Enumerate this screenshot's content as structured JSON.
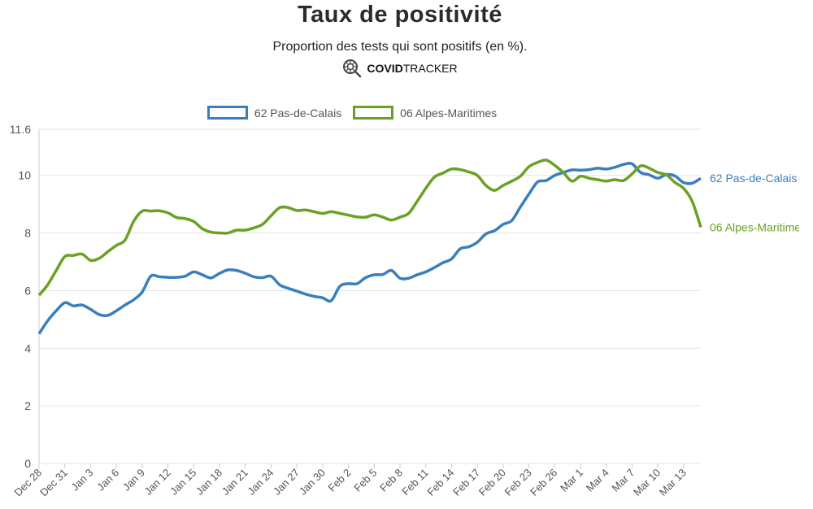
{
  "header": {
    "title": "Taux de positivité",
    "subtitle": "Proportion des tests qui sont positifs (en %).",
    "brand_bold": "COVID",
    "brand_rest": "TRACKER",
    "brand_icon": "virus-magnifier-icon"
  },
  "chart_data": {
    "type": "line",
    "title": "Taux de positivité",
    "subtitle": "Proportion des tests qui sont positifs (en %).",
    "xlabel": "",
    "ylabel": "",
    "ylim": [
      0,
      11.6
    ],
    "yticks": [
      "0",
      "2",
      "4",
      "6",
      "8",
      "10",
      "11.6"
    ],
    "xticks": [
      "Dec 28",
      "Dec 31",
      "Jan 3",
      "Jan 6",
      "Jan 9",
      "Jan 12",
      "Jan 15",
      "Jan 18",
      "Jan 21",
      "Jan 24",
      "Jan 27",
      "Jan 30",
      "Feb 2",
      "Feb 5",
      "Feb 8",
      "Feb 11",
      "Feb 14",
      "Feb 17",
      "Feb 20",
      "Feb 23",
      "Feb 26",
      "Mar 1",
      "Mar 4",
      "Mar 7",
      "Mar 10",
      "Mar 13"
    ],
    "grid": true,
    "legend_position": "top",
    "x": [
      "Dec 28",
      "Dec 29",
      "Dec 30",
      "Dec 31",
      "Jan 1",
      "Jan 2",
      "Jan 3",
      "Jan 4",
      "Jan 5",
      "Jan 6",
      "Jan 7",
      "Jan 8",
      "Jan 9",
      "Jan 10",
      "Jan 11",
      "Jan 12",
      "Jan 13",
      "Jan 14",
      "Jan 15",
      "Jan 16",
      "Jan 17",
      "Jan 18",
      "Jan 19",
      "Jan 20",
      "Jan 21",
      "Jan 22",
      "Jan 23",
      "Jan 24",
      "Jan 25",
      "Jan 26",
      "Jan 27",
      "Jan 28",
      "Jan 29",
      "Jan 30",
      "Jan 31",
      "Feb 1",
      "Feb 2",
      "Feb 3",
      "Feb 4",
      "Feb 5",
      "Feb 6",
      "Feb 7",
      "Feb 8",
      "Feb 9",
      "Feb 10",
      "Feb 11",
      "Feb 12",
      "Feb 13",
      "Feb 14",
      "Feb 15",
      "Feb 16",
      "Feb 17",
      "Feb 18",
      "Feb 19",
      "Feb 20",
      "Feb 21",
      "Feb 22",
      "Feb 23",
      "Feb 24",
      "Feb 25",
      "Feb 26",
      "Feb 27",
      "Feb 28",
      "Mar 1",
      "Mar 2",
      "Mar 3",
      "Mar 4",
      "Mar 5",
      "Mar 6",
      "Mar 7",
      "Mar 8",
      "Mar 9",
      "Mar 10",
      "Mar 11",
      "Mar 12",
      "Mar 13",
      "Mar 14",
      "Mar 15"
    ],
    "series": [
      {
        "name": "62 Pas-de-Calais",
        "color": "#3a7fbd",
        "values": [
          4.5,
          4.95,
          5.3,
          5.58,
          5.47,
          5.5,
          5.35,
          5.17,
          5.14,
          5.3,
          5.5,
          5.68,
          5.95,
          6.5,
          6.48,
          6.46,
          6.46,
          6.5,
          6.65,
          6.55,
          6.44,
          6.6,
          6.72,
          6.7,
          6.6,
          6.48,
          6.45,
          6.5,
          6.2,
          6.08,
          5.98,
          5.88,
          5.8,
          5.75,
          5.65,
          6.15,
          6.24,
          6.24,
          6.45,
          6.55,
          6.56,
          6.7,
          6.43,
          6.43,
          6.55,
          6.65,
          6.8,
          6.97,
          7.1,
          7.45,
          7.52,
          7.68,
          7.97,
          8.08,
          8.3,
          8.43,
          8.9,
          9.35,
          9.77,
          9.82,
          10.0,
          10.1,
          10.19,
          10.18,
          10.2,
          10.25,
          10.22,
          10.28,
          10.38,
          10.4,
          10.1,
          10.02,
          9.9,
          10.03,
          9.98,
          9.75,
          9.73,
          9.9
        ]
      },
      {
        "name": "06 Alpes-Maritimes",
        "color": "#6aa125",
        "values": [
          5.84,
          6.2,
          6.7,
          7.18,
          7.22,
          7.27,
          7.05,
          7.12,
          7.35,
          7.57,
          7.75,
          8.4,
          8.76,
          8.76,
          8.77,
          8.7,
          8.54,
          8.5,
          8.4,
          8.15,
          8.03,
          8.0,
          8.0,
          8.1,
          8.1,
          8.18,
          8.3,
          8.6,
          8.88,
          8.88,
          8.78,
          8.8,
          8.74,
          8.68,
          8.74,
          8.68,
          8.62,
          8.56,
          8.55,
          8.63,
          8.55,
          8.45,
          8.55,
          8.68,
          9.1,
          9.55,
          9.94,
          10.08,
          10.22,
          10.2,
          10.12,
          10.0,
          9.65,
          9.48,
          9.65,
          9.8,
          9.97,
          10.3,
          10.45,
          10.53,
          10.35,
          10.1,
          9.8,
          9.97,
          9.9,
          9.85,
          9.8,
          9.85,
          9.82,
          10.05,
          10.33,
          10.25,
          10.1,
          10.02,
          9.75,
          9.55,
          9.1,
          8.2
        ]
      }
    ]
  }
}
